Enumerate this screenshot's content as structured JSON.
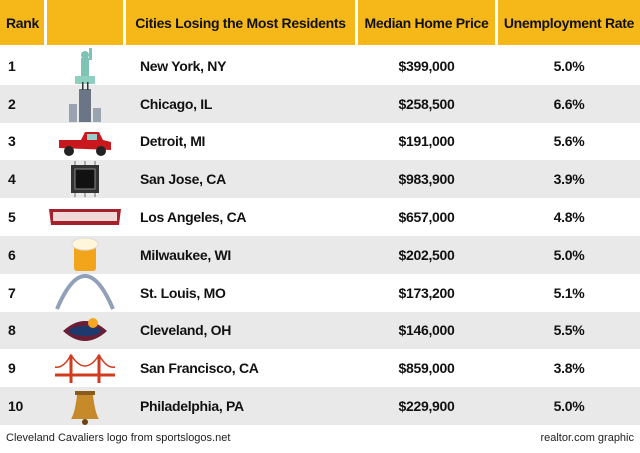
{
  "header": {
    "rank": "Rank",
    "city": "Cities Losing the Most Residents",
    "price": "Median Home Price",
    "rate": "Unemployment Rate"
  },
  "rows": [
    [
      "1",
      "New York, NY",
      "$399,000",
      "5.0%"
    ],
    [
      "2",
      "Chicago, IL",
      "$258,500",
      "6.6%"
    ],
    [
      "3",
      "Detroit, MI",
      "$191,000",
      "5.6%"
    ],
    [
      "4",
      "San Jose, CA",
      "$983,900",
      "3.9%"
    ],
    [
      "5",
      "Los Angeles, CA",
      "$657,000",
      "4.8%"
    ],
    [
      "6",
      "Milwaukee, WI",
      "$202,500",
      "5.0%"
    ],
    [
      "7",
      "St. Louis, MO",
      "$173,200",
      "5.1%"
    ],
    [
      "8",
      "Cleveland, OH",
      "$146,000",
      "5.5%"
    ],
    [
      "9",
      "San Francisco, CA",
      "$859,000",
      "3.8%"
    ],
    [
      "10",
      "Philadelphia, PA",
      "$229,900",
      "5.0%"
    ]
  ],
  "footer": {
    "left": "Cleveland Cavaliers logo from sportslogos.net",
    "right": "realtor.com graphic"
  }
}
